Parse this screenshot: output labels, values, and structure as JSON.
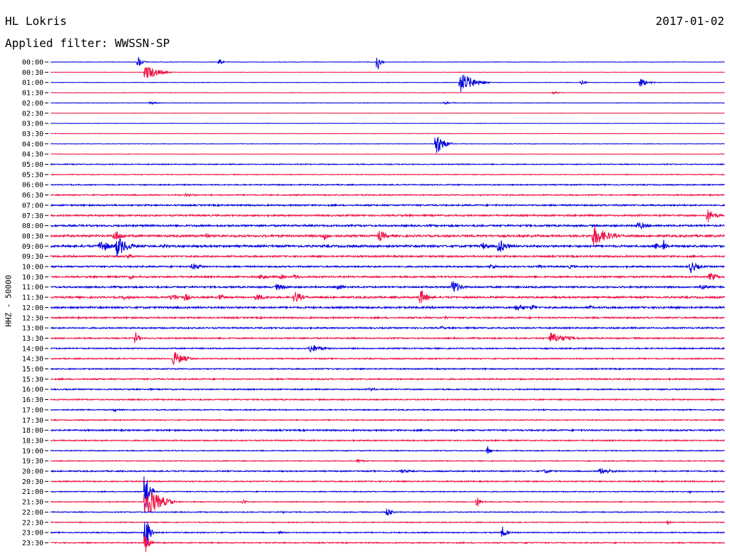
{
  "header": {
    "station": "HL Lokris",
    "date": "2017-01-02",
    "filter": "Applied filter: WWSSN-SP"
  },
  "chart_data": {
    "type": "line",
    "title": "",
    "ylabel": "HHZ - 50000",
    "xlabel": "",
    "grid": false,
    "colors": {
      "even_rows": "#0000dd",
      "odd_rows": "#ee1144"
    },
    "rows": [
      "00:00",
      "00:30",
      "01:00",
      "01:30",
      "02:00",
      "02:30",
      "03:00",
      "03:30",
      "04:00",
      "04:30",
      "05:00",
      "05:30",
      "06:00",
      "06:30",
      "07:00",
      "07:30",
      "08:00",
      "08:30",
      "09:00",
      "09:30",
      "10:00",
      "10:30",
      "11:00",
      "11:30",
      "12:00",
      "12:30",
      "13:00",
      "13:30",
      "14:00",
      "14:30",
      "15:00",
      "15:30",
      "16:00",
      "16:30",
      "17:00",
      "17:30",
      "18:00",
      "18:30",
      "19:00",
      "19:30",
      "20:00",
      "20:30",
      "21:00",
      "21:30",
      "22:00",
      "22:30",
      "23:00",
      "23:30"
    ],
    "row_noise": [
      0.3,
      0.25,
      0.3,
      0.3,
      0.3,
      0.2,
      0.25,
      0.3,
      0.3,
      0.3,
      0.6,
      0.5,
      0.7,
      0.8,
      1.0,
      1.1,
      1.2,
      1.4,
      1.4,
      1.1,
      1.0,
      1.1,
      1.1,
      1.2,
      1.2,
      1.0,
      0.9,
      0.9,
      0.8,
      0.8,
      0.8,
      0.9,
      0.8,
      0.8,
      0.7,
      0.7,
      1.0,
      0.8,
      0.6,
      0.6,
      0.8,
      0.8,
      0.6,
      0.6,
      0.6,
      0.6,
      0.7,
      0.7
    ],
    "events": [
      {
        "row": "00:00",
        "x": 0.13,
        "amp": 8,
        "dur": 0.01
      },
      {
        "row": "00:00",
        "x": 0.25,
        "amp": 7,
        "dur": 0.005
      },
      {
        "row": "00:00",
        "x": 0.485,
        "amp": 14,
        "dur": 0.006
      },
      {
        "row": "00:30",
        "x": 0.14,
        "amp": 12,
        "dur": 0.035
      },
      {
        "row": "01:00",
        "x": 0.608,
        "amp": 15,
        "dur": 0.04
      },
      {
        "row": "01:00",
        "x": 0.788,
        "amp": 3,
        "dur": 0.01
      },
      {
        "row": "01:00",
        "x": 0.875,
        "amp": 6,
        "dur": 0.02
      },
      {
        "row": "01:30",
        "x": 0.745,
        "amp": 2,
        "dur": 0.02
      },
      {
        "row": "02:00",
        "x": 0.148,
        "amp": 2,
        "dur": 0.02
      },
      {
        "row": "02:00",
        "x": 0.585,
        "amp": 2,
        "dur": 0.025
      },
      {
        "row": "04:00",
        "x": 0.572,
        "amp": 18,
        "dur": 0.02
      },
      {
        "row": "06:30",
        "x": 0.2,
        "amp": 3,
        "dur": 0.03
      },
      {
        "row": "07:30",
        "x": 0.975,
        "amp": 10,
        "dur": 0.02
      },
      {
        "row": "08:00",
        "x": 0.87,
        "amp": 6,
        "dur": 0.03
      },
      {
        "row": "08:30",
        "x": 0.095,
        "amp": 9,
        "dur": 0.02
      },
      {
        "row": "08:30",
        "x": 0.23,
        "amp": 6,
        "dur": 0.01
      },
      {
        "row": "08:30",
        "x": 0.405,
        "amp": 7,
        "dur": 0.015
      },
      {
        "row": "08:30",
        "x": 0.487,
        "amp": 9,
        "dur": 0.02
      },
      {
        "row": "08:30",
        "x": 0.805,
        "amp": 16,
        "dur": 0.04
      },
      {
        "row": "09:00",
        "x": 0.072,
        "amp": 10,
        "dur": 0.03
      },
      {
        "row": "09:00",
        "x": 0.098,
        "amp": 16,
        "dur": 0.03
      },
      {
        "row": "09:00",
        "x": 0.168,
        "amp": 3,
        "dur": 0.02
      },
      {
        "row": "09:00",
        "x": 0.64,
        "amp": 6,
        "dur": 0.02
      },
      {
        "row": "09:00",
        "x": 0.665,
        "amp": 12,
        "dur": 0.02
      },
      {
        "row": "09:00",
        "x": 0.898,
        "amp": 5,
        "dur": 0.01
      },
      {
        "row": "09:00",
        "x": 0.91,
        "amp": 10,
        "dur": 0.005
      },
      {
        "row": "09:30",
        "x": 0.115,
        "amp": 5,
        "dur": 0.01
      },
      {
        "row": "10:00",
        "x": 0.21,
        "amp": 5,
        "dur": 0.03
      },
      {
        "row": "10:00",
        "x": 0.652,
        "amp": 4,
        "dur": 0.02
      },
      {
        "row": "10:00",
        "x": 0.725,
        "amp": 4,
        "dur": 0.01
      },
      {
        "row": "10:00",
        "x": 0.77,
        "amp": 3,
        "dur": 0.02
      },
      {
        "row": "10:00",
        "x": 0.95,
        "amp": 9,
        "dur": 0.02
      },
      {
        "row": "10:30",
        "x": 0.118,
        "amp": 4,
        "dur": 0.01
      },
      {
        "row": "10:30",
        "x": 0.312,
        "amp": 5,
        "dur": 0.02
      },
      {
        "row": "10:30",
        "x": 0.34,
        "amp": 4,
        "dur": 0.02
      },
      {
        "row": "10:30",
        "x": 0.362,
        "amp": 6,
        "dur": 0.01
      },
      {
        "row": "10:30",
        "x": 0.978,
        "amp": 7,
        "dur": 0.02
      },
      {
        "row": "11:00",
        "x": 0.335,
        "amp": 5,
        "dur": 0.03
      },
      {
        "row": "11:00",
        "x": 0.425,
        "amp": 5,
        "dur": 0.02
      },
      {
        "row": "11:00",
        "x": 0.596,
        "amp": 12,
        "dur": 0.02
      },
      {
        "row": "11:00",
        "x": 0.965,
        "amp": 4,
        "dur": 0.03
      },
      {
        "row": "11:30",
        "x": 0.108,
        "amp": 4,
        "dur": 0.02
      },
      {
        "row": "11:30",
        "x": 0.178,
        "amp": 6,
        "dur": 0.03
      },
      {
        "row": "11:30",
        "x": 0.2,
        "amp": 7,
        "dur": 0.01
      },
      {
        "row": "11:30",
        "x": 0.25,
        "amp": 5,
        "dur": 0.02
      },
      {
        "row": "11:30",
        "x": 0.305,
        "amp": 6,
        "dur": 0.03
      },
      {
        "row": "11:30",
        "x": 0.362,
        "amp": 10,
        "dur": 0.02
      },
      {
        "row": "11:30",
        "x": 0.548,
        "amp": 12,
        "dur": 0.02
      },
      {
        "row": "12:00",
        "x": 0.69,
        "amp": 6,
        "dur": 0.03
      },
      {
        "row": "12:00",
        "x": 0.715,
        "amp": 5,
        "dur": 0.01
      },
      {
        "row": "12:00",
        "x": 0.8,
        "amp": 3,
        "dur": 0.02
      },
      {
        "row": "12:30",
        "x": 0.585,
        "amp": 4,
        "dur": 0.005
      },
      {
        "row": "13:00",
        "x": 0.58,
        "amp": 4,
        "dur": 0.005
      },
      {
        "row": "13:30",
        "x": 0.125,
        "amp": 10,
        "dur": 0.01
      },
      {
        "row": "13:30",
        "x": 0.74,
        "amp": 9,
        "dur": 0.05
      },
      {
        "row": "14:00",
        "x": 0.385,
        "amp": 7,
        "dur": 0.03
      },
      {
        "row": "14:30",
        "x": 0.182,
        "amp": 11,
        "dur": 0.03
      },
      {
        "row": "16:00",
        "x": 0.145,
        "amp": 2,
        "dur": 0.01
      },
      {
        "row": "16:00",
        "x": 0.475,
        "amp": 3,
        "dur": 0.02
      },
      {
        "row": "17:00",
        "x": 0.095,
        "amp": 3,
        "dur": 0.01
      },
      {
        "row": "19:00",
        "x": 0.648,
        "amp": 8,
        "dur": 0.005
      },
      {
        "row": "19:30",
        "x": 0.455,
        "amp": 3,
        "dur": 0.02
      },
      {
        "row": "20:00",
        "x": 0.52,
        "amp": 3,
        "dur": 0.03
      },
      {
        "row": "20:00",
        "x": 0.732,
        "amp": 3,
        "dur": 0.03
      },
      {
        "row": "20:00",
        "x": 0.815,
        "amp": 5,
        "dur": 0.04
      },
      {
        "row": "21:00",
        "x": 0.14,
        "amp": 38,
        "dur": 0.01
      },
      {
        "row": "21:00",
        "x": 0.948,
        "amp": 2,
        "dur": 0.005
      },
      {
        "row": "21:30",
        "x": 0.14,
        "amp": 26,
        "dur": 0.04
      },
      {
        "row": "21:30",
        "x": 0.285,
        "amp": 4,
        "dur": 0.01
      },
      {
        "row": "21:30",
        "x": 0.632,
        "amp": 9,
        "dur": 0.01
      },
      {
        "row": "22:00",
        "x": 0.345,
        "amp": 3,
        "dur": 0.005
      },
      {
        "row": "22:00",
        "x": 0.5,
        "amp": 8,
        "dur": 0.01
      },
      {
        "row": "22:30",
        "x": 0.915,
        "amp": 3,
        "dur": 0.01
      },
      {
        "row": "23:00",
        "x": 0.14,
        "amp": 34,
        "dur": 0.01
      },
      {
        "row": "23:00",
        "x": 0.34,
        "amp": 3,
        "dur": 0.005
      },
      {
        "row": "23:00",
        "x": 0.67,
        "amp": 10,
        "dur": 0.01
      },
      {
        "row": "23:30",
        "x": 0.14,
        "amp": 16,
        "dur": 0.01
      },
      {
        "row": "23:30",
        "x": 0.705,
        "amp": 3,
        "dur": 0.005
      }
    ]
  }
}
